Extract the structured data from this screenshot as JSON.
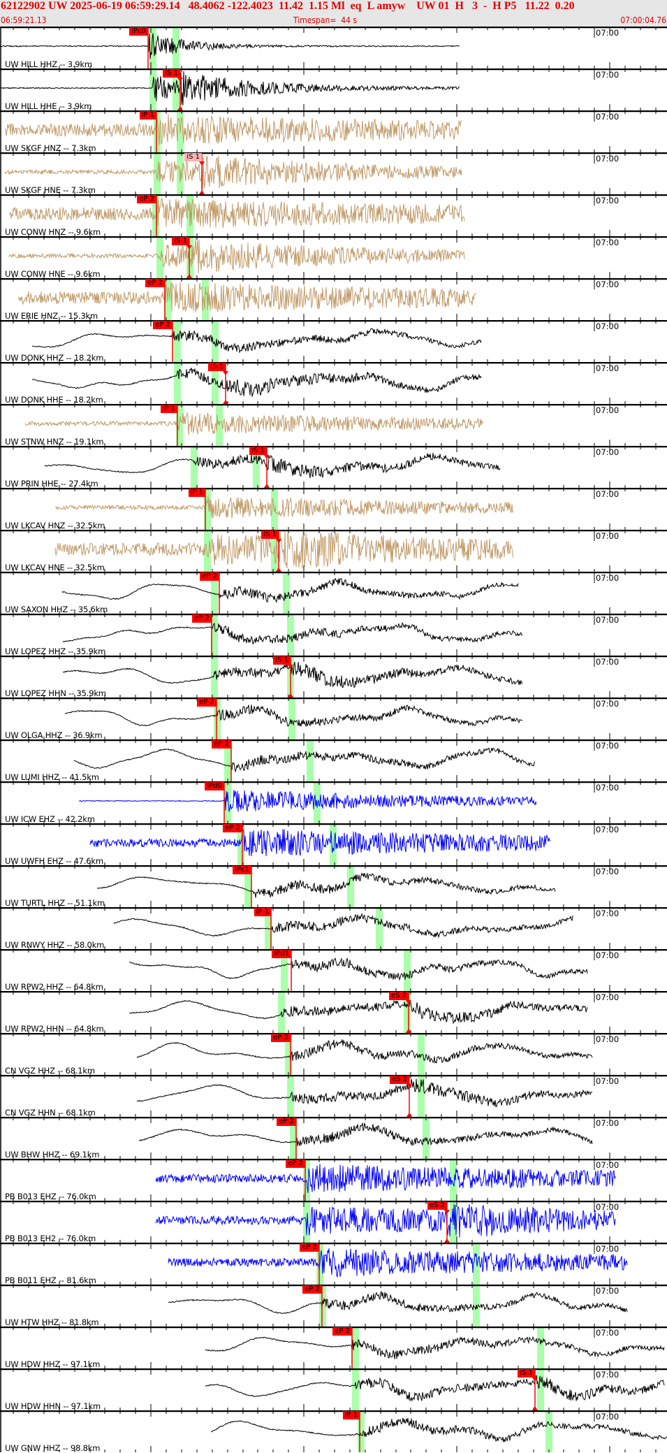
{
  "header": {
    "title": "62122902 UW 2025-06-19 06:59:29.14   48.4062 -122.4023  11.42  1.15 Ml  eq  L amyw    UW 01  H   3  -  H P5   11.22  0.20",
    "start_time": "06:59:21.13",
    "timespan": "Timespan=  44 s",
    "end_time": "07:00:04.76"
  },
  "time_marker_label": "07:00",
  "colors": {
    "header_text": "#e00000",
    "pick": "#ff0000",
    "window": "#aaffaa",
    "broadband": "#000000",
    "strong_motion": "#c09a68",
    "short_period": "#0000ff"
  },
  "panels": [
    {
      "label": "UW HILL HHZ -- 3.9km",
      "pick": "iPc0"
    },
    {
      "label": "UW HILL HHE -- 3.9km",
      "pick": "iS 1"
    },
    {
      "label": "UW SKGF HNZ -- 7.3km",
      "pick": "iP 1"
    },
    {
      "label": "UW SKGF HNE -- 7.3km",
      "pick": "iS 1"
    },
    {
      "label": "UW CONW HNZ -- 9.6km",
      "pick": "eP 2"
    },
    {
      "label": "UW CONW HNE -- 9.6km",
      "pick": "iS 1"
    },
    {
      "label": "UW ERIE HNZ -- 15.3km",
      "pick": "eP 2"
    },
    {
      "label": "UW DONK HHZ -- 18.2km",
      "pick": "eP 2"
    },
    {
      "label": "UW DONK HHE -- 18.2km",
      "pick": "iS 1"
    },
    {
      "label": "UW STNW HNZ -- 19.1km",
      "pick": "iP 1"
    },
    {
      "label": "UW PRIN HHE -- 27.4km",
      "pick": "iS 1"
    },
    {
      "label": "UW LKCAV HNZ -- 32.5km",
      "pick": "iP 1"
    },
    {
      "label": "UW LKCAV HNE -- 32.5km",
      "pick": "iS 1"
    },
    {
      "label": "UW SAXON HHZ -- 35.6km",
      "pick": "eP 2"
    },
    {
      "label": "UW LOPEZ HHZ -- 35.9km",
      "pick": "eP 2"
    },
    {
      "label": "UW LOPEZ HHN -- 35.9km",
      "pick": "iS 1"
    },
    {
      "label": "UW OLGA HHZ -- 36.9km",
      "pick": "eP 2"
    },
    {
      "label": "UW LUMI HHZ -- 41.5km",
      "pick": "eP 2"
    },
    {
      "label": "UW ICW EHZ -- 42.2km",
      "pick": "iPd0"
    },
    {
      "label": "UW UWFH EHZ -- 47.6km",
      "pick": "eP 2"
    },
    {
      "label": "UW TURTL HHZ -- 51.1km",
      "pick": "iPc1"
    },
    {
      "label": "UW RNWY HHZ -- 58.0km",
      "pick": "iP 1"
    },
    {
      "label": "UW RPW2 HHZ -- 64.8km",
      "pick": "iPd1"
    },
    {
      "label": "UW RPW2 HHN -- 64.8km",
      "pick": "eS 2"
    },
    {
      "label": "CN VGZ HHZ -- 68.1km",
      "pick": "eP 2"
    },
    {
      "label": "CN VGZ HHN -- 68.1km",
      "pick": "eS 2"
    },
    {
      "label": "UW BHW HHZ -- 69.1km",
      "pick": "eP 2"
    },
    {
      "label": "PB B013 EHZ -- 76.0km",
      "pick": "eP 2"
    },
    {
      "label": "PB B013 EH2 -- 76.0km",
      "pick": "eS 2"
    },
    {
      "label": "PB B011 EHZ -- 81.6km",
      "pick": "eP 2"
    },
    {
      "label": "UW HTW HHZ -- 81.8km",
      "pick": "eP 2"
    },
    {
      "label": "UW HDW HHZ -- 97.1km",
      "pick": "eP 2"
    },
    {
      "label": "UW HDW HHN -- 97.1km",
      "pick": "iS 1"
    },
    {
      "label": "UW GNW HHZ -- 98.8km",
      "pick": "iP 1"
    }
  ]
}
